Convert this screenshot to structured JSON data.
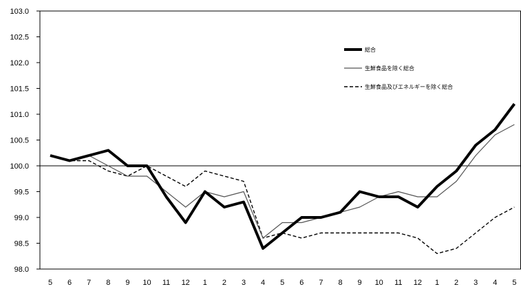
{
  "chart_data": {
    "type": "line",
    "title": "",
    "xlabel": "",
    "ylabel": "",
    "x": [
      "5",
      "6",
      "7",
      "8",
      "9",
      "10",
      "11",
      "12",
      "1",
      "2",
      "3",
      "4",
      "5",
      "6",
      "7",
      "8",
      "9",
      "10",
      "11",
      "12",
      "1",
      "2",
      "3",
      "4",
      "5"
    ],
    "ylim": [
      98.0,
      103.0
    ],
    "yticks": [
      "98.0",
      "98.5",
      "99.0",
      "99.5",
      "100.0",
      "100.5",
      "101.0",
      "101.5",
      "102.0",
      "102.5",
      "103.0"
    ],
    "reference_line": 100.0,
    "grid": false,
    "legend_position": "top-right",
    "series": [
      {
        "name": "総合",
        "style": "thick-solid",
        "color": "#000000",
        "values": [
          100.2,
          100.1,
          100.2,
          100.3,
          100.0,
          100.0,
          99.4,
          98.9,
          99.5,
          99.2,
          99.3,
          98.4,
          98.7,
          99.0,
          99.0,
          99.1,
          99.5,
          99.4,
          99.4,
          99.2,
          99.6,
          99.9,
          100.4,
          100.7,
          101.2
        ]
      },
      {
        "name": "生鮮食品を除く総合",
        "style": "thin-solid",
        "color": "#555555",
        "values": [
          100.2,
          100.1,
          100.2,
          100.0,
          99.8,
          99.8,
          99.5,
          99.2,
          99.5,
          99.4,
          99.5,
          98.6,
          98.9,
          98.9,
          99.0,
          99.1,
          99.2,
          99.4,
          99.5,
          99.4,
          99.4,
          99.7,
          100.2,
          100.6,
          100.8
        ]
      },
      {
        "name": "生鮮食品及びエネルギーを除く総合",
        "style": "dashed",
        "color": "#000000",
        "values": [
          100.2,
          100.1,
          100.1,
          99.9,
          99.8,
          100.0,
          99.8,
          99.6,
          99.9,
          99.8,
          99.7,
          98.6,
          98.7,
          98.6,
          98.7,
          98.7,
          98.7,
          98.7,
          98.7,
          98.6,
          98.3,
          98.4,
          98.7,
          99.0,
          99.2
        ]
      }
    ]
  }
}
